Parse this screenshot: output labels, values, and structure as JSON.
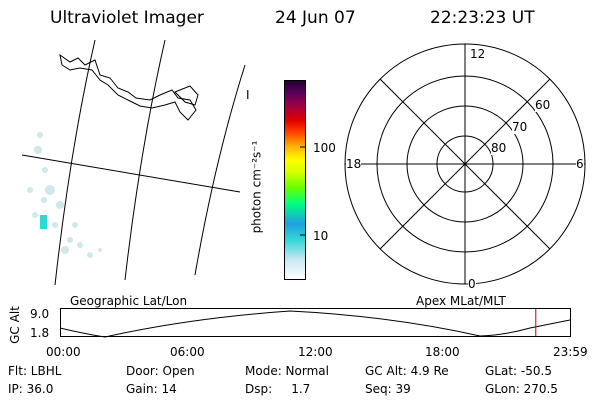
{
  "header": {
    "title": "Ultraviolet Imager",
    "date": "24 Jun 07",
    "time": "22:23:23 UT"
  },
  "colorbar": {
    "label": "photon cm⁻²s⁻¹",
    "ticks": [
      "100",
      "10"
    ],
    "colors": [
      "#ffffff",
      "#c8e8f0",
      "#33d6d6",
      "#20a0e0",
      "#00ff80",
      "#66ff00",
      "#d8ff00",
      "#ffff00",
      "#ffb000",
      "#ff4000",
      "#e00000",
      "#a00040",
      "#600060",
      "#200030"
    ]
  },
  "polar": {
    "mlt_labels": {
      "top": "12",
      "left": "18",
      "right": "6",
      "bottom": "0"
    },
    "lat_labels": [
      "60",
      "70",
      "80"
    ]
  },
  "geo_panel": {
    "label": "Geographic Lat/Lon",
    "mark": "I"
  },
  "apex_label": "Apex MLat/MLT",
  "altplot": {
    "ylabel": "GC Alt",
    "yticks": [
      "9.0",
      "1.8"
    ],
    "xticks": [
      "00:00",
      "06:00",
      "12:00",
      "18:00",
      "23:59"
    ],
    "current_time_hours": 22.39
  },
  "info": {
    "row1": [
      "Flt: LBHL",
      "Door: Open",
      "Mode: Normal",
      "GC Alt: 4.9 Re",
      "GLat: -50.5"
    ],
    "row2": [
      "IP: 36.0",
      "Gain: 14",
      "Dsp:     1.7",
      "Seq: 39",
      "GLon: 270.5"
    ]
  }
}
